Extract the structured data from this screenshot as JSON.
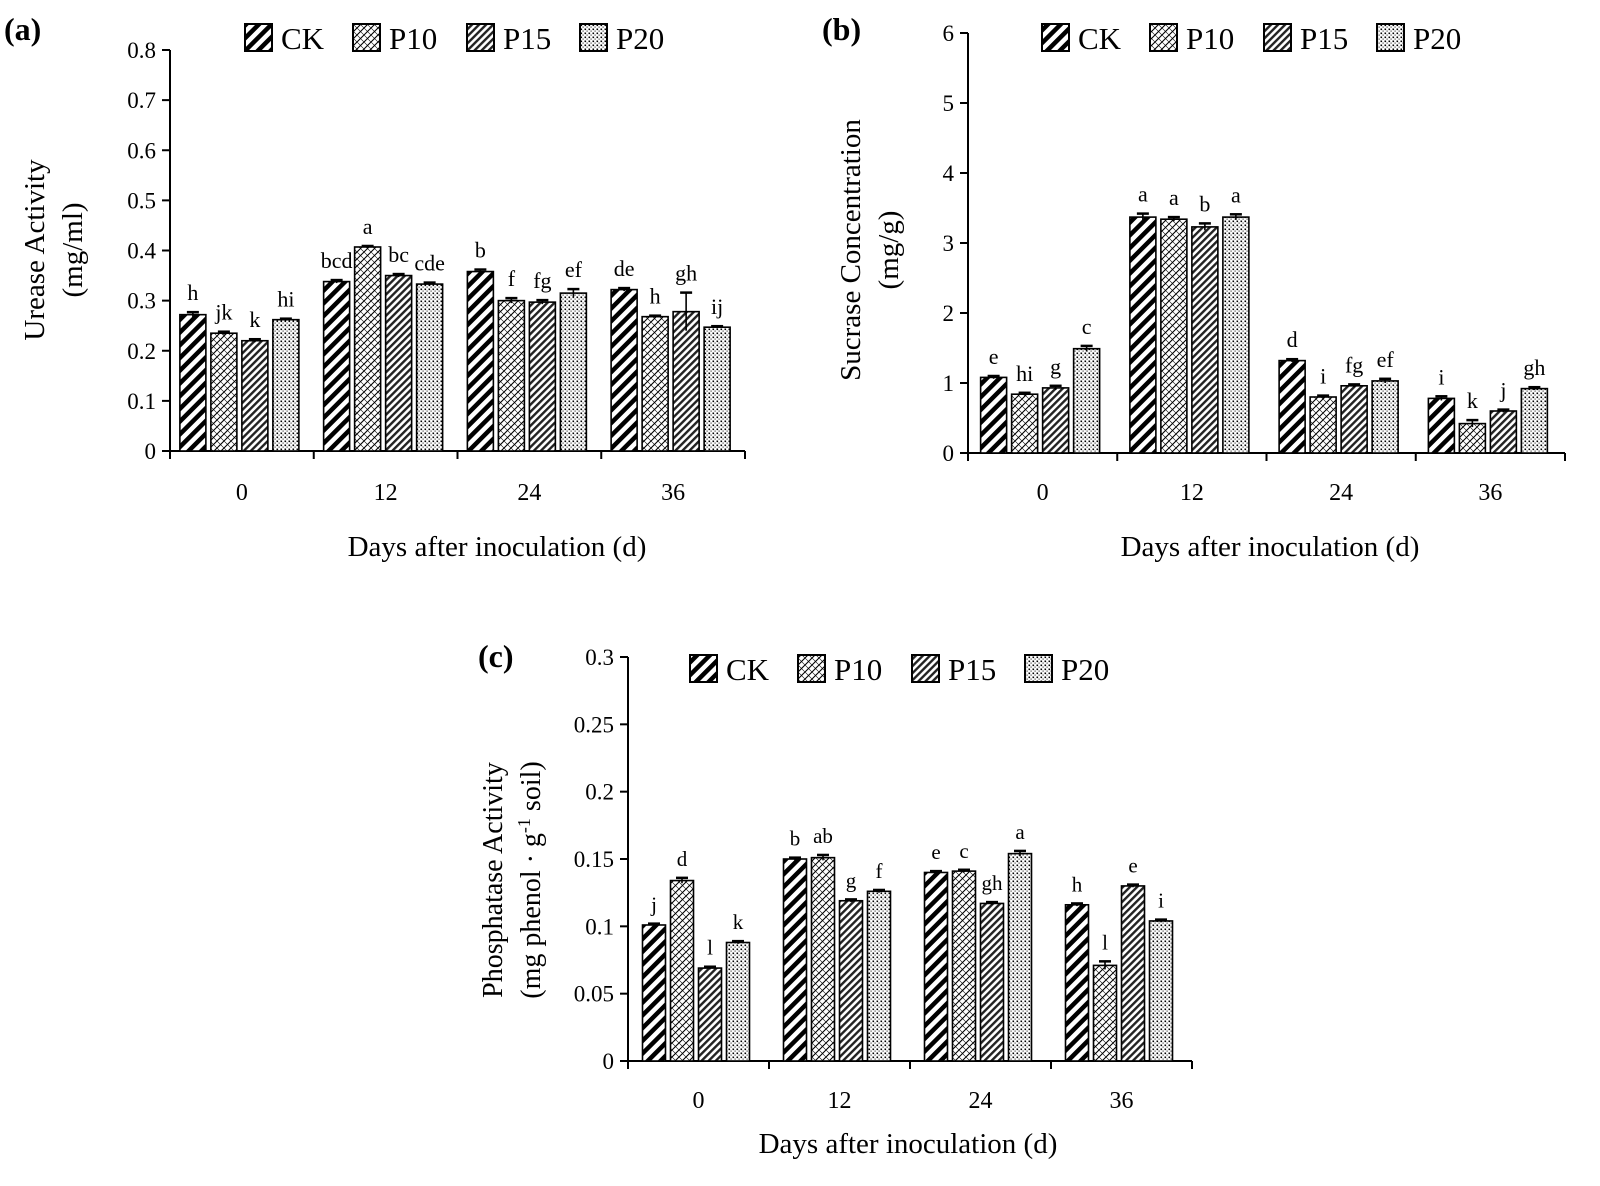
{
  "chart_data": [
    {
      "panel_label": "(a)",
      "type": "bar",
      "ylabel_line1": "Urease Activity",
      "ylabel_line2": "(mg/ml)",
      "xlabel": "Days after inoculation (d)",
      "categories": [
        "0",
        "12",
        "24",
        "36"
      ],
      "ylim": [
        0,
        0.8
      ],
      "yticks": [
        0,
        0.1,
        0.2,
        0.3,
        0.4,
        0.5,
        0.6,
        0.7,
        0.8
      ],
      "ytick_labels": [
        "0",
        "0.1",
        "0.2",
        "0.3",
        "0.4",
        "0.5",
        "0.6",
        "0.7",
        "0.8"
      ],
      "legend": [
        "CK",
        "P10",
        "P15",
        "P20"
      ],
      "series": [
        {
          "name": "CK",
          "values": [
            0.272,
            0.338,
            0.358,
            0.322
          ],
          "errors": [
            0.005,
            0.003,
            0.004,
            0.003
          ],
          "letters": [
            "h",
            "bcd",
            "b",
            "de"
          ]
        },
        {
          "name": "P10",
          "values": [
            0.235,
            0.407,
            0.3,
            0.268
          ],
          "errors": [
            0.003,
            0.002,
            0.005,
            0.002
          ],
          "letters": [
            "jk",
            "a",
            "f",
            "h"
          ]
        },
        {
          "name": "P15",
          "values": [
            0.22,
            0.35,
            0.297,
            0.278
          ],
          "errors": [
            0.003,
            0.003,
            0.004,
            0.038
          ],
          "letters": [
            "k",
            "bc",
            "fg",
            "gh"
          ]
        },
        {
          "name": "P20",
          "values": [
            0.262,
            0.333,
            0.315,
            0.247
          ],
          "errors": [
            0.002,
            0.003,
            0.008,
            0.002
          ],
          "letters": [
            "hi",
            "cde",
            "ef",
            "ij"
          ]
        }
      ]
    },
    {
      "panel_label": "(b)",
      "type": "bar",
      "ylabel_line1": "Sucrase Concentration",
      "ylabel_line2": "(mg/g)",
      "xlabel": "Days after inoculation (d)",
      "categories": [
        "0",
        "12",
        "24",
        "36"
      ],
      "ylim": [
        0,
        6
      ],
      "yticks": [
        0,
        1,
        2,
        3,
        4,
        5,
        6
      ],
      "ytick_labels": [
        "0",
        "1",
        "2",
        "3",
        "4",
        "5",
        "6"
      ],
      "legend": [
        "CK",
        "P10",
        "P15",
        "P20"
      ],
      "series": [
        {
          "name": "CK",
          "values": [
            1.08,
            3.37,
            1.32,
            0.78
          ],
          "errors": [
            0.02,
            0.05,
            0.02,
            0.03
          ],
          "letters": [
            "e",
            "a",
            "d",
            "i"
          ]
        },
        {
          "name": "P10",
          "values": [
            0.84,
            3.34,
            0.8,
            0.42
          ],
          "errors": [
            0.02,
            0.03,
            0.02,
            0.05
          ],
          "letters": [
            "hi",
            "a",
            "i",
            "k"
          ]
        },
        {
          "name": "P15",
          "values": [
            0.93,
            3.23,
            0.96,
            0.6
          ],
          "errors": [
            0.03,
            0.05,
            0.02,
            0.02
          ],
          "letters": [
            "g",
            "b",
            "fg",
            "j"
          ]
        },
        {
          "name": "P20",
          "values": [
            1.49,
            3.37,
            1.03,
            0.92
          ],
          "errors": [
            0.04,
            0.04,
            0.03,
            0.02
          ],
          "letters": [
            "c",
            "a",
            "ef",
            "gh"
          ]
        }
      ]
    },
    {
      "panel_label": "(c)",
      "type": "bar",
      "ylabel_line1": "Phosphatase Activity",
      "ylabel_line2": "(mg phenol · g",
      "ylabel_sup": "-1",
      "ylabel_tail": " soil)",
      "xlabel": "Days after inoculation (d)",
      "categories": [
        "0",
        "12",
        "24",
        "36"
      ],
      "ylim": [
        0,
        0.3
      ],
      "yticks": [
        0,
        0.05,
        0.1,
        0.15,
        0.2,
        0.25,
        0.3
      ],
      "ytick_labels": [
        "0",
        "0.05",
        "0.1",
        "0.15",
        "0.2",
        "0.25",
        "0.3"
      ],
      "legend": [
        "CK",
        "P10",
        "P15",
        "P20"
      ],
      "series": [
        {
          "name": "CK",
          "values": [
            0.101,
            0.15,
            0.14,
            0.116
          ],
          "errors": [
            0.001,
            0.001,
            0.001,
            0.001
          ],
          "letters": [
            "j",
            "b",
            "e",
            "h"
          ]
        },
        {
          "name": "P10",
          "values": [
            0.134,
            0.151,
            0.141,
            0.071
          ],
          "errors": [
            0.002,
            0.002,
            0.001,
            0.003
          ],
          "letters": [
            "d",
            "ab",
            "c",
            "l"
          ]
        },
        {
          "name": "P15",
          "values": [
            0.069,
            0.119,
            0.117,
            0.13
          ],
          "errors": [
            0.001,
            0.001,
            0.001,
            0.001
          ],
          "letters": [
            "l",
            "g",
            "gh",
            "e"
          ]
        },
        {
          "name": "P20",
          "values": [
            0.088,
            0.126,
            0.154,
            0.104
          ],
          "errors": [
            0.001,
            0.001,
            0.002,
            0.001
          ],
          "letters": [
            "k",
            "f",
            "a",
            "i"
          ]
        }
      ]
    }
  ]
}
